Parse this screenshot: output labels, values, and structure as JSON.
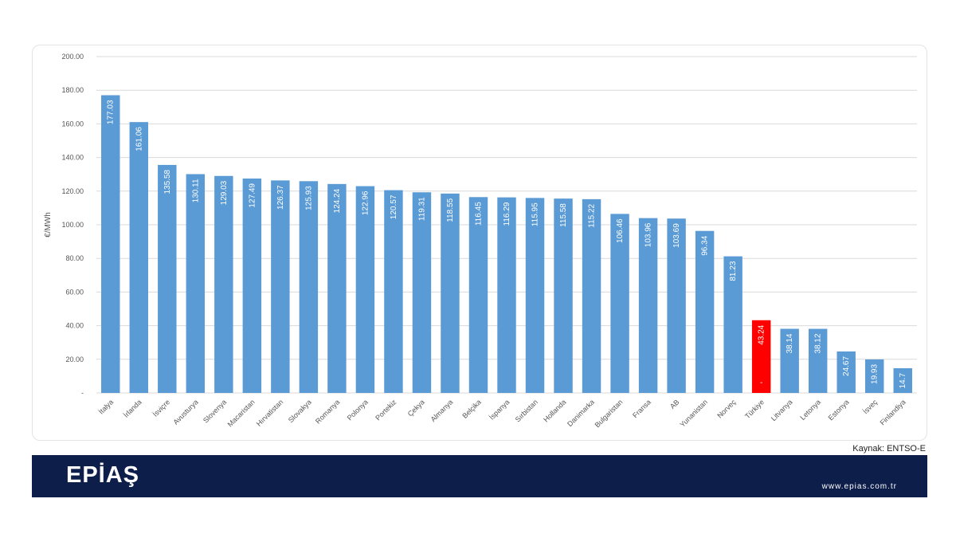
{
  "colors": {
    "bar": "#5b9bd5",
    "highlight": "#ff0000",
    "grid": "#d9d9d9",
    "footer": "#0e1e4a"
  },
  "chart_data": {
    "type": "bar",
    "ylabel": "€/MWh",
    "ylim": [
      0,
      200
    ],
    "yticks": [
      "-",
      "20.00",
      "40.00",
      "60.00",
      "80.00",
      "100.00",
      "120.00",
      "140.00",
      "160.00",
      "180.00",
      "200.00"
    ],
    "grid": true,
    "categories": [
      "İtalya",
      "İrlanda",
      "İsviçre",
      "Avusturya",
      "Slovenya",
      "Macaristan",
      "Hırvatistan",
      "Slovakya",
      "Romanya",
      "Polonya",
      "Portekiz",
      "Çekya",
      "Almanya",
      "Belçika",
      "İspanya",
      "Sırbistan",
      "Hollanda",
      "Danimarka",
      "Bulgaristan",
      "Fransa",
      "AB",
      "Yunanistan",
      "Norveç",
      "Türkiye",
      "Litvanya",
      "Letonya",
      "Estonya",
      "İsveç",
      "Finlandiya"
    ],
    "values": [
      177.03,
      161.06,
      135.58,
      130.11,
      129.03,
      127.49,
      126.37,
      125.93,
      124.24,
      122.96,
      120.57,
      119.31,
      118.55,
      116.45,
      116.29,
      115.95,
      115.58,
      115.22,
      106.46,
      103.96,
      103.69,
      96.34,
      81.23,
      43.24,
      38.14,
      38.12,
      24.67,
      19.93,
      14.7
    ],
    "data_labels": [
      "177.03",
      "161.06",
      "135.58",
      "130.11",
      "129.03",
      "127.49",
      "126.37",
      "125.93",
      "124.24",
      "122.96",
      "120.57",
      "119.31",
      "118.55",
      "116.45",
      "116.29",
      "115.95",
      "115.58",
      "115.22",
      "106.46",
      "103.96",
      "103.69",
      "96.34",
      "81.23",
      "43.24",
      "38.14",
      "38.12",
      "24.67",
      "19.93",
      "14.7"
    ],
    "highlight_category": "Türkiye",
    "highlight_extra_label": "-"
  },
  "source_note": "Kaynak: ENTSO-E",
  "footer": {
    "logo_text": "EPİAŞ",
    "website": "www.epias.com.tr"
  }
}
